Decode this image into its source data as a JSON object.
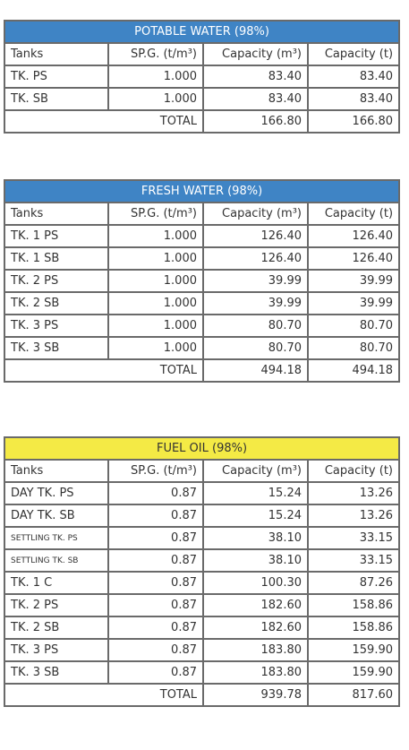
{
  "tables": [
    {
      "title": "POTABLE WATER (98%)",
      "header": [
        "Tanks",
        "SP.G. (t/m³)",
        "Capacity (m³)",
        "Capacity (t)"
      ],
      "rows": [
        [
          "TK. PS",
          "1.000",
          "83.40",
          "83.40"
        ],
        [
          "TK. SB",
          "1.000",
          "83.40",
          "83.40"
        ]
      ],
      "total": [
        "TOTAL",
        "166.80",
        "166.80"
      ]
    },
    {
      "title": "FRESH WATER (98%)",
      "header": [
        "Tanks",
        "SP.G. (t/m³)",
        "Capacity (m³)",
        "Capacity (t)"
      ],
      "rows": [
        [
          "TK. 1 PS",
          "1.000",
          "126.40",
          "126.40"
        ],
        [
          "TK. 1 SB",
          "1.000",
          "126.40",
          "126.40"
        ],
        [
          "TK. 2 PS",
          "1.000",
          "39.99",
          "39.99"
        ],
        [
          "TK. 2 SB",
          "1.000",
          "39.99",
          "39.99"
        ],
        [
          "TK. 3 PS",
          "1.000",
          "80.70",
          "80.70"
        ],
        [
          "TK. 3 SB",
          "1.000",
          "80.70",
          "80.70"
        ]
      ],
      "total": [
        "TOTAL",
        "494.18",
        "494.18"
      ]
    },
    {
      "title": "FUEL OIL (98%)",
      "header": [
        "Tanks",
        "SP.G. (t/m³)",
        "Capacity (m³)",
        "Capacity (t)"
      ],
      "rows": [
        [
          "DAY TK. PS",
          "0.87",
          "15.24",
          "13.26"
        ],
        [
          "DAY TK. SB",
          "0.87",
          "15.24",
          "13.26"
        ],
        [
          "SETTLING TK. PS",
          "0.87",
          "38.10",
          "33.15"
        ],
        [
          "SETTLING TK. SB",
          "0.87",
          "38.10",
          "33.15"
        ],
        [
          "TK. 1 C",
          "0.87",
          "100.30",
          "87.26"
        ],
        [
          "TK. 2 PS",
          "0.87",
          "182.60",
          "158.86"
        ],
        [
          "TK. 2 SB",
          "0.87",
          "182.60",
          "158.86"
        ],
        [
          "TK. 3 PS",
          "0.87",
          "183.80",
          "159.90"
        ],
        [
          "TK. 3 SB",
          "0.87",
          "183.80",
          "159.90"
        ]
      ],
      "total": [
        "TOTAL",
        "939.78",
        "817.60"
      ]
    }
  ]
}
